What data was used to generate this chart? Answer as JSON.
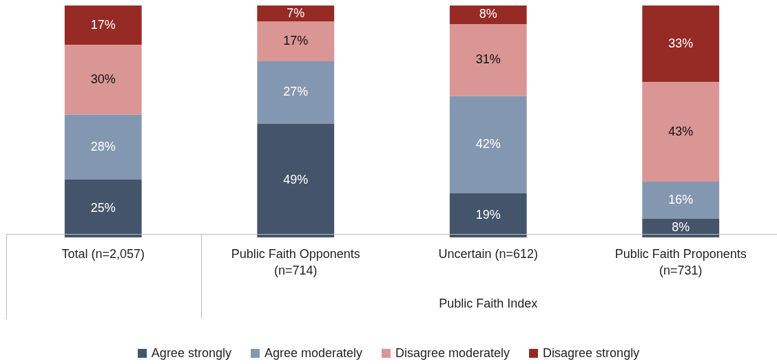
{
  "chart_data": {
    "type": "bar",
    "stacked": true,
    "legend": "bottom",
    "xlabel": "Public Faith Index",
    "categories": [
      "Total (n=2,057)",
      "Public Faith Opponents (n=714)",
      "Uncertain (n=612)",
      "Public Faith Proponents (n=731)"
    ],
    "series": [
      {
        "name": "Agree strongly",
        "color": "#44546a",
        "values": [
          25,
          49,
          19,
          8
        ],
        "value_labels": [
          "25%",
          "49%",
          "19%",
          "8%"
        ]
      },
      {
        "name": "Agree moderately",
        "color": "#8497b0",
        "values": [
          28,
          27,
          42,
          16
        ],
        "value_labels": [
          "28%",
          "27%",
          "42%",
          "16%"
        ]
      },
      {
        "name": "Disagree moderately",
        "color": "#da9694",
        "values": [
          30,
          17,
          31,
          43
        ],
        "value_labels": [
          "30%",
          "17%",
          "31%",
          "43%"
        ]
      },
      {
        "name": "Disagree strongly",
        "color": "#962a24",
        "values": [
          17,
          7,
          8,
          33
        ],
        "value_labels": [
          "17%",
          "7%",
          "8%",
          "33%"
        ]
      }
    ]
  }
}
